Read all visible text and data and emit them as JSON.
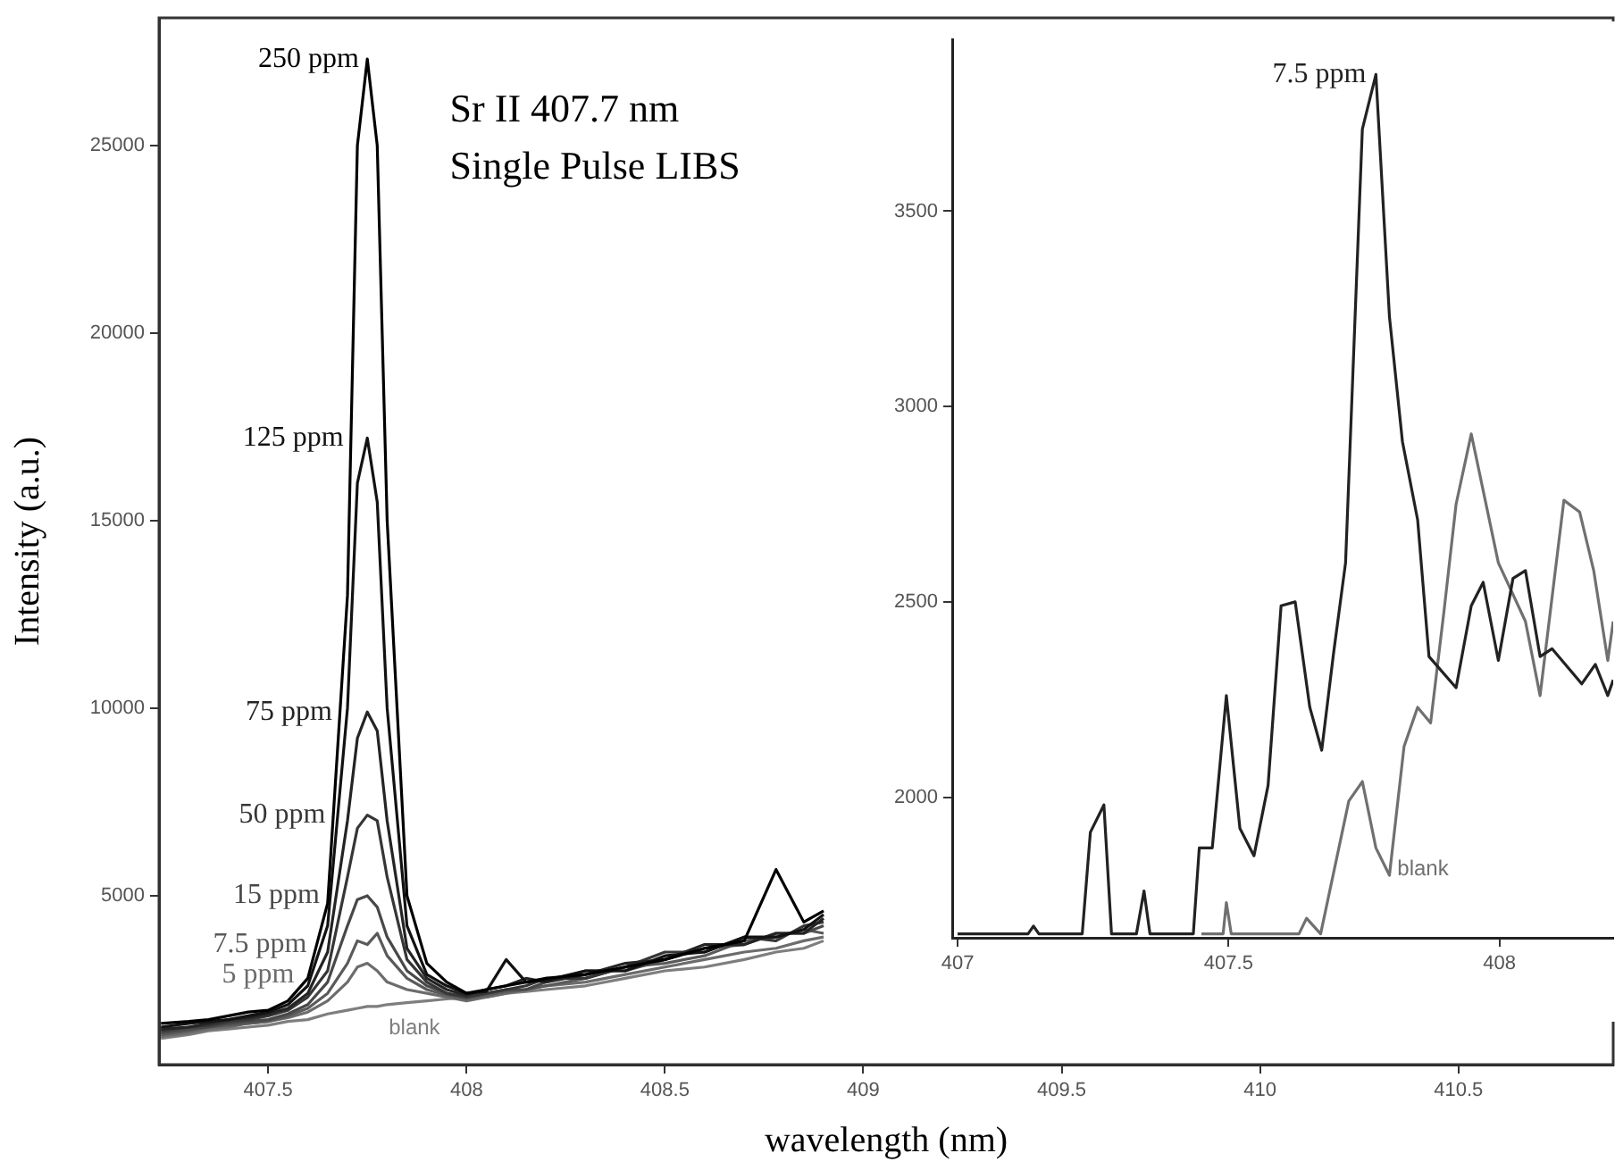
{
  "chart_data": [
    {
      "type": "line",
      "xlabel": "wavelength (nm)",
      "ylabel": "Intensity (a.u.)",
      "annotations": [
        "Sr II 407.7 nm",
        "Single Pulse LIBS"
      ],
      "x": [
        407.23,
        407.3,
        407.35,
        407.4,
        407.45,
        407.5,
        407.55,
        407.6,
        407.65,
        407.7,
        407.725,
        407.75,
        407.775,
        407.8,
        407.85,
        407.9,
        407.95,
        408,
        408.05,
        408.1,
        408.15,
        408.2,
        408.3,
        408.4,
        408.5,
        408.6,
        408.7,
        408.78,
        408.85,
        408.9
      ],
      "series": [
        {
          "name": "250 ppm",
          "color": "#000000",
          "values": [
            1600,
            1650,
            1700,
            1800,
            1900,
            1950,
            2200,
            2800,
            4800,
            13000,
            25000,
            27300,
            25000,
            15000,
            5000,
            3200,
            2700,
            2400,
            2500,
            2600,
            2700,
            2800,
            2900,
            3100,
            3300,
            3600,
            3800,
            5700,
            4300,
            4600
          ]
        },
        {
          "name": "125 ppm",
          "color": "#121212",
          "values": [
            1500,
            1600,
            1650,
            1700,
            1800,
            1900,
            2100,
            2600,
            4200,
            10000,
            16000,
            17200,
            15500,
            10000,
            4200,
            2900,
            2600,
            2400,
            2450,
            3300,
            2700,
            2750,
            3000,
            3000,
            3400,
            3500,
            3900,
            3900,
            4100,
            4500
          ]
        },
        {
          "name": "75 ppm",
          "color": "#242424",
          "values": [
            1450,
            1500,
            1600,
            1700,
            1750,
            1850,
            2000,
            2400,
            3500,
            7000,
            9200,
            9900,
            9400,
            7000,
            3600,
            2800,
            2500,
            2350,
            2500,
            2600,
            2800,
            2700,
            2900,
            3200,
            3300,
            3700,
            3700,
            4000,
            4000,
            4400
          ]
        },
        {
          "name": "50 ppm",
          "color": "#363636",
          "values": [
            1400,
            1500,
            1550,
            1650,
            1700,
            1800,
            1950,
            2300,
            3000,
            5500,
            6800,
            7150,
            7000,
            5500,
            3300,
            2700,
            2400,
            2300,
            2400,
            2500,
            2600,
            2800,
            2800,
            3100,
            3500,
            3500,
            3900,
            3800,
            4200,
            4300
          ]
        },
        {
          "name": "15 ppm",
          "color": "#484848",
          "values": [
            1350,
            1450,
            1500,
            1600,
            1650,
            1700,
            1850,
            2100,
            2700,
            4200,
            4900,
            5000,
            4700,
            3900,
            3000,
            2600,
            2400,
            2300,
            2400,
            2500,
            2500,
            2700,
            3000,
            3000,
            3300,
            3600,
            3700,
            4000,
            4000,
            4200
          ]
        },
        {
          "name": "7.5 ppm",
          "color": "#5a5a5a",
          "values": [
            1300,
            1400,
            1500,
            1550,
            1600,
            1650,
            1800,
            2000,
            2400,
            3200,
            3800,
            3700,
            4000,
            3400,
            2800,
            2500,
            2350,
            2250,
            2350,
            2450,
            2500,
            2600,
            2800,
            3100,
            3200,
            3400,
            3800,
            3900,
            4100,
            4000
          ]
        },
        {
          "name": "5 ppm",
          "color": "#6c6c6c",
          "values": [
            1250,
            1350,
            1450,
            1500,
            1600,
            1650,
            1750,
            1900,
            2200,
            2700,
            3100,
            3200,
            3000,
            2700,
            2500,
            2400,
            2300,
            2200,
            2300,
            2400,
            2500,
            2600,
            2700,
            2900,
            3100,
            3300,
            3500,
            3600,
            3800,
            3900
          ]
        },
        {
          "name": "blank",
          "color": "#7e7e7e",
          "values": [
            1200,
            1300,
            1400,
            1450,
            1500,
            1550,
            1650,
            1700,
            1850,
            1950,
            2000,
            2050,
            2050,
            2100,
            2150,
            2200,
            2250,
            2300,
            2300,
            2400,
            2450,
            2500,
            2600,
            2800,
            3000,
            3100,
            3300,
            3500,
            3600,
            3800
          ]
        }
      ],
      "xlim": [
        407.225,
        410.89
      ],
      "ylim": [
        500,
        28400
      ],
      "xticks": [
        407.5,
        408,
        408.5,
        409,
        409.5,
        410,
        410.5
      ],
      "yticks": [
        5000,
        10000,
        15000,
        20000,
        25000
      ]
    },
    {
      "type": "line",
      "series": [
        {
          "name": "7.5 ppm",
          "color": "#222222",
          "x": [
            407.0,
            407.13,
            407.14,
            407.15,
            407.23,
            407.245,
            407.27,
            407.284,
            407.33,
            407.344,
            407.355,
            407.435,
            407.446,
            407.47,
            407.496,
            407.521,
            407.547,
            407.573,
            407.597,
            407.623,
            407.65,
            407.672,
            407.694,
            407.716,
            407.747,
            407.772,
            407.797,
            407.821,
            407.849,
            407.87,
            407.92,
            407.948,
            407.97,
            407.998,
            408.025,
            408.048,
            408.075,
            408.097,
            408.152,
            408.177,
            408.2,
            408.21
          ],
          "values": [
            1650,
            1650,
            1670,
            1650,
            1650,
            1910,
            1980,
            1650,
            1650,
            1760,
            1650,
            1650,
            1870,
            1870,
            2260,
            1920,
            1850,
            2030,
            2490,
            2500,
            2230,
            2120,
            2370,
            2600,
            3710,
            3850,
            3230,
            2910,
            2710,
            2360,
            2280,
            2490,
            2550,
            2350,
            2560,
            2580,
            2360,
            2380,
            2290,
            2340,
            2260,
            2300
          ]
        },
        {
          "name": "blank",
          "color": "#707070",
          "x": [
            407.45,
            407.49,
            407.496,
            407.505,
            407.63,
            407.644,
            407.67,
            407.722,
            407.747,
            407.772,
            407.797,
            407.824,
            407.849,
            407.873,
            407.898,
            407.92,
            407.948,
            407.998,
            408.048,
            408.075,
            408.119,
            408.148,
            408.174,
            408.2,
            408.21
          ],
          "values": [
            1650,
            1650,
            1730,
            1650,
            1650,
            1690,
            1650,
            1990,
            2040,
            1870,
            1800,
            2130,
            2230,
            2190,
            2480,
            2750,
            2930,
            2600,
            2450,
            2260,
            2760,
            2730,
            2580,
            2350,
            2450
          ]
        }
      ],
      "xlim": [
        406.99,
        408.21
      ],
      "ylim": [
        1640,
        3940
      ],
      "xticks": [
        407,
        407.5,
        408
      ],
      "yticks": [
        2000,
        2500,
        3000,
        3500
      ]
    }
  ]
}
